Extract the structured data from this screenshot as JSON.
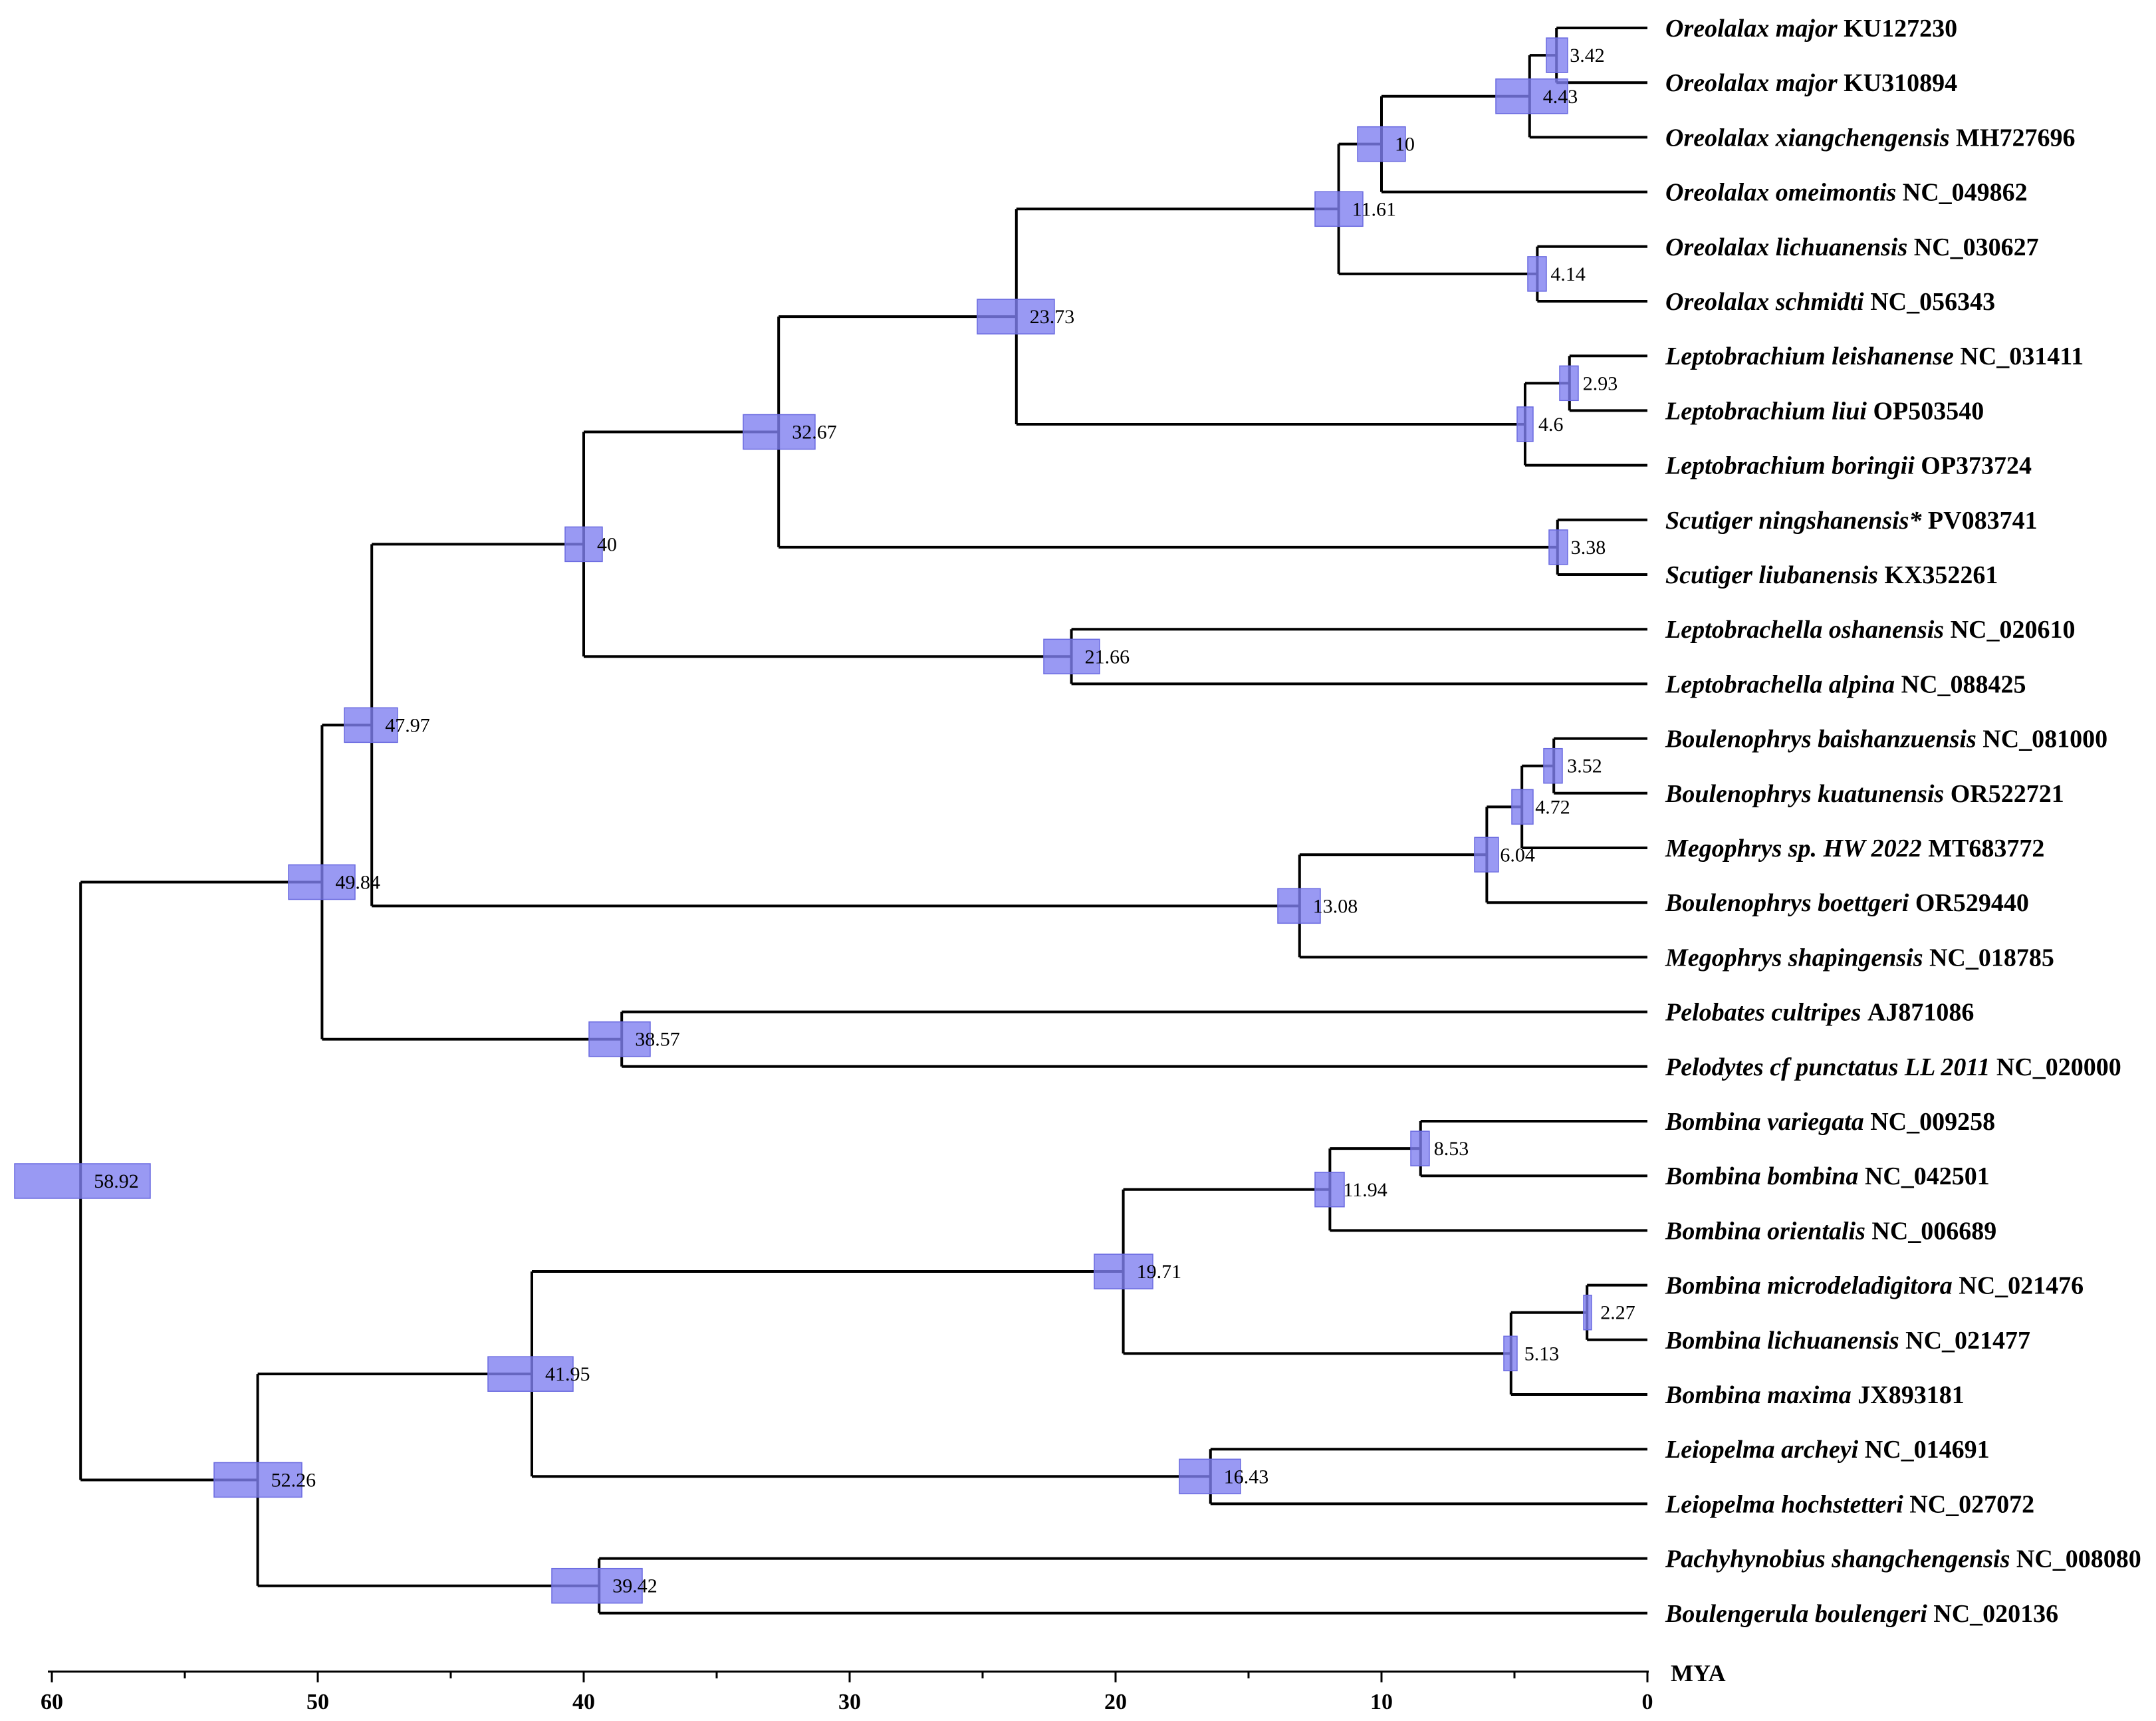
{
  "axis": {
    "unit": "MYA",
    "ticks": [
      60,
      50,
      40,
      30,
      20,
      10,
      0
    ]
  },
  "colors": {
    "hpd_bar": "#7f7ff0",
    "branch": "#000000"
  },
  "taxa": [
    {
      "name": "Oreolalax major",
      "acc": "KU127230"
    },
    {
      "name": "Oreolalax major",
      "acc": "KU310894"
    },
    {
      "name": "Oreolalax xiangchengensis",
      "acc": "MH727696"
    },
    {
      "name": "Oreolalax omeimontis",
      "acc": "NC_049862"
    },
    {
      "name": "Oreolalax lichuanensis",
      "acc": "NC_030627"
    },
    {
      "name": "Oreolalax schmidti",
      "acc": "NC_056343"
    },
    {
      "name": "Leptobrachium leishanense",
      "acc": "NC_031411"
    },
    {
      "name": "Leptobrachium liui",
      "acc": "OP503540"
    },
    {
      "name": "Leptobrachium boringii",
      "acc": "OP373724"
    },
    {
      "name": "Scutiger ningshanensis*",
      "acc": "PV083741"
    },
    {
      "name": "Scutiger liubanensis",
      "acc": "KX352261"
    },
    {
      "name": "Leptobrachella oshanensis",
      "acc": "NC_020610"
    },
    {
      "name": "Leptobrachella alpina",
      "acc": "NC_088425"
    },
    {
      "name": "Boulenophrys baishanzuensis",
      "acc": "NC_081000"
    },
    {
      "name": "Boulenophrys kuatunensis",
      "acc": "OR522721"
    },
    {
      "name": "Megophrys sp. HW 2022",
      "acc": "MT683772"
    },
    {
      "name": "Boulenophrys boettgeri",
      "acc": "OR529440"
    },
    {
      "name": "Megophrys shapingensis",
      "acc": "NC_018785"
    },
    {
      "name": "Pelobates cultripes",
      "acc": "AJ871086"
    },
    {
      "name": "Pelodytes cf punctatus LL 2011",
      "acc": "NC_020000"
    },
    {
      "name": "Bombina variegata",
      "acc": "NC_009258"
    },
    {
      "name": "Bombina bombina",
      "acc": "NC_042501"
    },
    {
      "name": "Bombina orientalis",
      "acc": "NC_006689"
    },
    {
      "name": "Bombina microdeladigitora",
      "acc": "NC_021476"
    },
    {
      "name": "Bombina lichuanensis",
      "acc": "NC_021477"
    },
    {
      "name": "Bombina maxima",
      "acc": "JX893181"
    },
    {
      "name": "Leiopelma archeyi",
      "acc": "NC_014691"
    },
    {
      "name": "Leiopelma hochstetteri",
      "acc": "NC_027072"
    },
    {
      "name": "Pachyhynobius shangchengensis",
      "acc": "NC_008080"
    },
    {
      "name": "Boulengerula boulengeri",
      "acc": "NC_020136"
    }
  ],
  "nodes": [
    {
      "id": "n342",
      "age": 3.42,
      "label": "3.42",
      "hpd": [
        3.0,
        3.8
      ],
      "children": [
        "t0",
        "t1"
      ]
    },
    {
      "id": "n443",
      "age": 4.43,
      "label": "4.43",
      "hpd": [
        3.0,
        5.7
      ],
      "children": [
        "n342",
        "t2"
      ]
    },
    {
      "id": "n10",
      "age": 10,
      "label": "10",
      "hpd": [
        9.1,
        10.9
      ],
      "children": [
        "n443",
        "t3"
      ]
    },
    {
      "id": "n414",
      "age": 4.14,
      "label": "4.14",
      "hpd": [
        3.8,
        4.5
      ],
      "children": [
        "t4",
        "t5"
      ]
    },
    {
      "id": "n1161",
      "age": 11.61,
      "label": "11.61",
      "hpd": [
        10.7,
        12.5
      ],
      "children": [
        "n10",
        "n414"
      ]
    },
    {
      "id": "n293",
      "age": 2.93,
      "label": "2.93",
      "hpd": [
        2.6,
        3.3
      ],
      "children": [
        "t6",
        "t7"
      ]
    },
    {
      "id": "n46",
      "age": 4.6,
      "label": "4.6",
      "hpd": [
        4.3,
        4.9
      ],
      "children": [
        "n293",
        "t8"
      ]
    },
    {
      "id": "n2373",
      "age": 23.73,
      "label": "23.73",
      "hpd": [
        22.3,
        25.2
      ],
      "children": [
        "n1161",
        "n46"
      ]
    },
    {
      "id": "n338",
      "age": 3.38,
      "label": "3.38",
      "hpd": [
        3.0,
        3.7
      ],
      "children": [
        "t9",
        "t10"
      ]
    },
    {
      "id": "n3267",
      "age": 32.67,
      "label": "32.67",
      "hpd": [
        31.3,
        34.0
      ],
      "children": [
        "n2373",
        "n338"
      ]
    },
    {
      "id": "n2166",
      "age": 21.66,
      "label": "21.66",
      "hpd": [
        20.6,
        22.7
      ],
      "children": [
        "t11",
        "t12"
      ]
    },
    {
      "id": "n40",
      "age": 40,
      "label": "40",
      "hpd": [
        39.3,
        40.7
      ],
      "children": [
        "n3267",
        "n2166"
      ]
    },
    {
      "id": "n352",
      "age": 3.52,
      "label": "3.52",
      "hpd": [
        3.2,
        3.9
      ],
      "children": [
        "t13",
        "t14"
      ]
    },
    {
      "id": "n472",
      "age": 4.72,
      "label": "4.72",
      "hpd": [
        4.3,
        5.1
      ],
      "children": [
        "n352",
        "t15"
      ]
    },
    {
      "id": "n604",
      "age": 6.04,
      "label": "6.04",
      "hpd": [
        5.6,
        6.5
      ],
      "children": [
        "n472",
        "t16"
      ]
    },
    {
      "id": "n1308",
      "age": 13.08,
      "label": "13.08",
      "hpd": [
        12.3,
        13.9
      ],
      "children": [
        "n604",
        "t17"
      ]
    },
    {
      "id": "n4797",
      "age": 47.97,
      "label": "47.97",
      "hpd": [
        47.0,
        49.0
      ],
      "children": [
        "n40",
        "n1308"
      ]
    },
    {
      "id": "n3857",
      "age": 38.57,
      "label": "38.57",
      "hpd": [
        37.5,
        39.8
      ],
      "children": [
        "t18",
        "t19"
      ]
    },
    {
      "id": "n4984",
      "age": 49.84,
      "label": "49.84",
      "hpd": [
        48.6,
        51.1
      ],
      "children": [
        "n4797",
        "n3857"
      ]
    },
    {
      "id": "n853",
      "age": 8.53,
      "label": "8.53",
      "hpd": [
        8.2,
        8.9
      ],
      "children": [
        "t20",
        "t21"
      ]
    },
    {
      "id": "n1194",
      "age": 11.94,
      "label": "11.94",
      "hpd": [
        11.4,
        12.5
      ],
      "children": [
        "n853",
        "t22"
      ]
    },
    {
      "id": "n227",
      "age": 2.27,
      "label": "2.27",
      "hpd": [
        2.1,
        2.4
      ],
      "children": [
        "t23",
        "t24"
      ]
    },
    {
      "id": "n513",
      "age": 5.13,
      "label": "5.13",
      "hpd": [
        4.9,
        5.4
      ],
      "children": [
        "n227",
        "t25"
      ]
    },
    {
      "id": "n1971",
      "age": 19.71,
      "label": "19.71",
      "hpd": [
        18.6,
        20.8
      ],
      "children": [
        "n1194",
        "n513"
      ]
    },
    {
      "id": "n1643",
      "age": 16.43,
      "label": "16.43",
      "hpd": [
        15.3,
        17.6
      ],
      "children": [
        "t26",
        "t27"
      ]
    },
    {
      "id": "n4195",
      "age": 41.95,
      "label": "41.95",
      "hpd": [
        40.4,
        43.6
      ],
      "children": [
        "n1971",
        "n1643"
      ]
    },
    {
      "id": "n3942",
      "age": 39.42,
      "label": "39.42",
      "hpd": [
        37.8,
        41.2
      ],
      "children": [
        "t28",
        "t29"
      ]
    },
    {
      "id": "n5226",
      "age": 52.26,
      "label": "52.26",
      "hpd": [
        50.6,
        53.9
      ],
      "children": [
        "n4195",
        "n3942"
      ]
    },
    {
      "id": "n5892",
      "age": 58.92,
      "label": "58.92",
      "hpd": [
        56.3,
        61.4
      ],
      "children": [
        "n4984",
        "n5226"
      ]
    }
  ]
}
